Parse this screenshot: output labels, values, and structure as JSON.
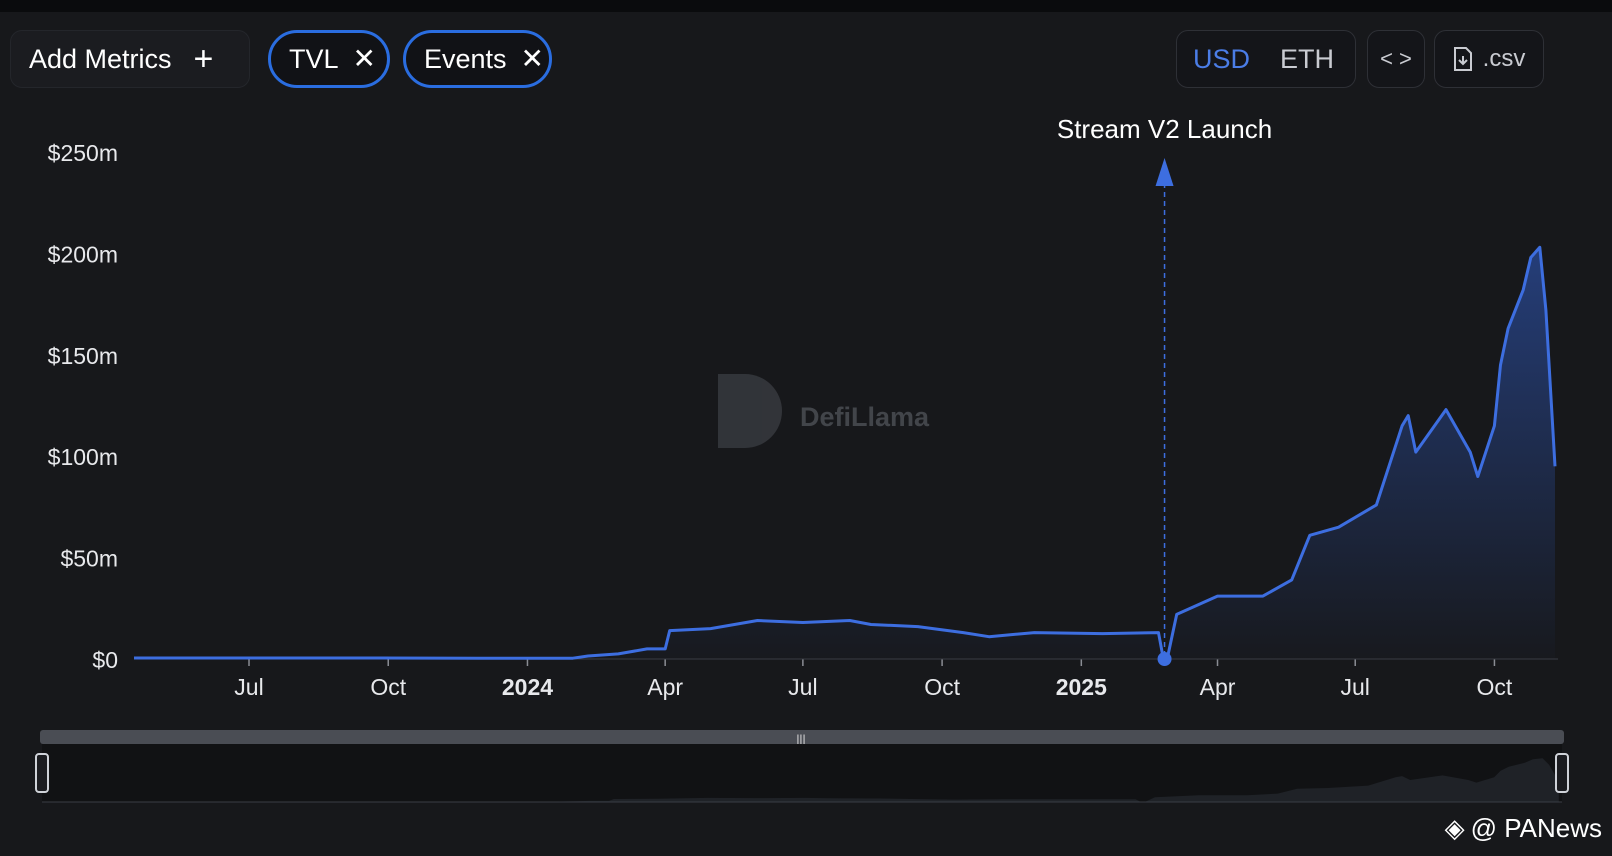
{
  "toolbar": {
    "add_metrics_label": "Add Metrics",
    "add_icon": "plus-icon",
    "pills": [
      {
        "label": "TVL",
        "icon": "close-icon"
      },
      {
        "label": "Events",
        "icon": "close-icon"
      }
    ],
    "currency_options": [
      "USD",
      "ETH"
    ],
    "currency_selected": "USD",
    "embed_icon": "code-icon",
    "csv_label": ".csv",
    "csv_icon": "file-download-icon"
  },
  "watermark": {
    "text": "DefiLlama",
    "icon": "llama-logo-icon"
  },
  "credit": {
    "text": "@ PANews",
    "icon": "panews-logo-icon"
  },
  "colors": {
    "line": "#3d6ee0",
    "accent": "#4b7de6",
    "pill_border": "#2a6de0"
  },
  "chart_data": {
    "type": "area",
    "series": [
      {
        "values": [
          [
            "2023-04-16",
            0.5
          ],
          [
            "2023-06-01",
            0.5
          ],
          [
            "2023-09-01",
            0.5
          ],
          [
            "2023-12-01",
            0.4
          ],
          [
            "2024-01-31",
            0.4
          ],
          [
            "2024-02-10",
            1.5
          ],
          [
            "2024-03-01",
            2.5
          ],
          [
            "2024-03-20",
            5
          ],
          [
            "2024-04-01",
            5
          ],
          [
            "2024-04-04",
            14
          ],
          [
            "2024-05-01",
            15
          ],
          [
            "2024-06-01",
            19
          ],
          [
            "2024-07-01",
            18
          ],
          [
            "2024-08-01",
            19
          ],
          [
            "2024-08-15",
            17
          ],
          [
            "2024-09-15",
            16
          ],
          [
            "2024-10-15",
            13
          ],
          [
            "2024-11-01",
            11
          ],
          [
            "2024-12-01",
            13
          ],
          [
            "2025-01-15",
            12.5
          ],
          [
            "2025-02-21",
            13
          ],
          [
            "2025-02-24",
            1
          ],
          [
            "2025-02-27",
            1
          ],
          [
            "2025-03-05",
            22
          ],
          [
            "2025-04-01",
            31
          ],
          [
            "2025-05-01",
            31
          ],
          [
            "2025-05-20",
            39
          ],
          [
            "2025-06-01",
            61
          ],
          [
            "2025-06-20",
            65
          ],
          [
            "2025-07-15",
            76
          ],
          [
            "2025-08-01",
            115
          ],
          [
            "2025-08-05",
            120
          ],
          [
            "2025-08-10",
            102
          ],
          [
            "2025-08-30",
            123
          ],
          [
            "2025-09-15",
            102
          ],
          [
            "2025-09-20",
            90
          ],
          [
            "2025-10-01",
            115
          ],
          [
            "2025-10-05",
            145
          ],
          [
            "2025-10-10",
            163
          ],
          [
            "2025-10-20",
            182
          ],
          [
            "2025-10-25",
            198
          ],
          [
            "2025-10-31",
            203
          ],
          [
            "2025-11-04",
            172
          ],
          [
            "2025-11-10",
            95
          ]
        ]
      }
    ],
    "y_ticks": [
      "$0",
      "$50m",
      "$100m",
      "$150m",
      "$200m",
      "$250m"
    ],
    "ylim": [
      0,
      250
    ],
    "x_ticks": [
      {
        "date": "2023-07-01",
        "label": "Jul"
      },
      {
        "date": "2023-10-01",
        "label": "Oct"
      },
      {
        "date": "2024-01-01",
        "label": "2024",
        "bold": true
      },
      {
        "date": "2024-04-01",
        "label": "Apr"
      },
      {
        "date": "2024-07-01",
        "label": "Jul"
      },
      {
        "date": "2024-10-01",
        "label": "Oct"
      },
      {
        "date": "2025-01-01",
        "label": "2025",
        "bold": true
      },
      {
        "date": "2025-04-01",
        "label": "Apr"
      },
      {
        "date": "2025-07-01",
        "label": "Jul"
      },
      {
        "date": "2025-10-01",
        "label": "Oct"
      }
    ],
    "xlim": [
      "2023-04-16",
      "2025-11-12"
    ],
    "annotation": {
      "date": "2025-02-25",
      "label": "Stream V2 Launch"
    },
    "grid": false,
    "range_slider": true
  }
}
